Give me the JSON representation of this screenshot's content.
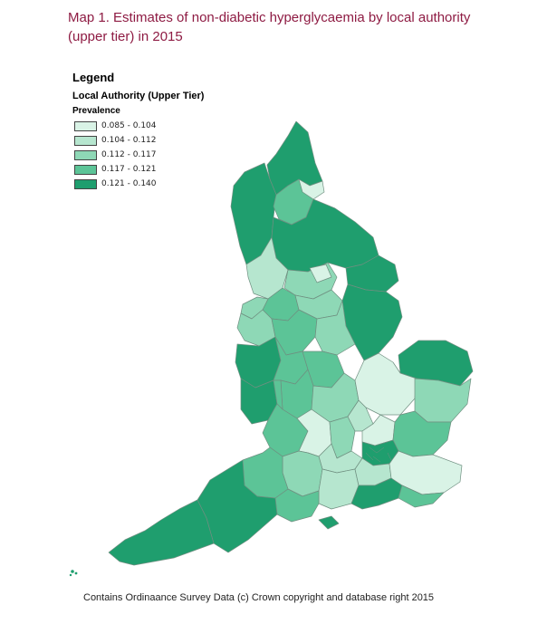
{
  "title": "Map 1. Estimates of non-diabetic hyperglycaemia by local authority (upper tier) in 2015",
  "legend": {
    "title": "Legend",
    "subtitle": "Local Authority (Upper Tier)",
    "field": "Prevalence",
    "items": [
      {
        "label": "0.085 - 0.104",
        "color": "#d9f3e6"
      },
      {
        "label": "0.104 - 0.112",
        "color": "#b6e6cf"
      },
      {
        "label": "0.112 - 0.117",
        "color": "#8ed8b6"
      },
      {
        "label": "0.117 - 0.121",
        "color": "#5cc497"
      },
      {
        "label": "0.121 - 0.140",
        "color": "#1f9e6e"
      }
    ]
  },
  "footer": "Contains Ordinaance Survey Data (c)  Crown copyright and database right 2015"
}
